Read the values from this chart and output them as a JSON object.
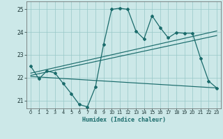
{
  "xlabel": "Humidex (Indice chaleur)",
  "xlim": [
    -0.5,
    23.5
  ],
  "ylim": [
    20.65,
    25.35
  ],
  "yticks": [
    21,
    22,
    23,
    24,
    25
  ],
  "xticks": [
    0,
    1,
    2,
    3,
    4,
    5,
    6,
    7,
    8,
    9,
    10,
    11,
    12,
    13,
    14,
    15,
    16,
    17,
    18,
    19,
    20,
    21,
    22,
    23
  ],
  "bg_color": "#cce8e8",
  "line_color": "#1a6b6b",
  "line1_x": [
    0,
    1,
    2,
    3,
    4,
    5,
    6,
    7,
    8,
    9,
    10,
    11,
    12,
    13,
    14,
    15,
    16,
    17,
    18,
    19,
    20,
    21,
    22,
    23
  ],
  "line1_y": [
    22.5,
    21.95,
    22.3,
    22.2,
    21.75,
    21.3,
    20.82,
    20.72,
    21.6,
    23.45,
    25.0,
    25.05,
    25.0,
    24.05,
    23.7,
    24.72,
    24.2,
    23.75,
    23.98,
    23.95,
    23.95,
    22.85,
    21.85,
    21.55
  ],
  "line2_x": [
    0,
    23
  ],
  "line2_y": [
    22.2,
    24.05
  ],
  "line3_x": [
    0,
    23
  ],
  "line3_y": [
    22.1,
    23.85
  ],
  "line4_x": [
    0,
    23
  ],
  "line4_y": [
    22.05,
    21.55
  ]
}
